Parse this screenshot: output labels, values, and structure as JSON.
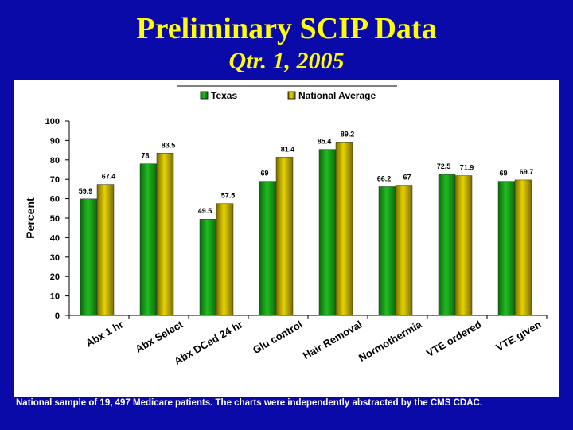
{
  "header": {
    "title": "Preliminary SCIP Data",
    "subtitle": "Qtr. 1, 2005"
  },
  "footnote": "National sample of 19, 497 Medicare patients. The charts were independently abstracted by the CMS CDAC.",
  "colors": {
    "background": "#0a0aa8",
    "title": "#ffff00",
    "texas": "#22aa22",
    "national": "#c8b400"
  },
  "chart_data": {
    "type": "bar",
    "categories": [
      "Abx 1 hr",
      "Abx Select",
      "Abx DCed 24 hr",
      "Glu control",
      "Hair Removal",
      "Normothermia",
      "VTE ordered",
      "VTE given"
    ],
    "series": [
      {
        "name": "Texas",
        "values": [
          59.9,
          78,
          49.5,
          69,
          85.4,
          66.2,
          72.5,
          69
        ]
      },
      {
        "name": "National Average",
        "values": [
          67.4,
          83.5,
          57.5,
          81.4,
          89.2,
          67,
          71.9,
          69.7
        ]
      }
    ],
    "value_labels": {
      "Texas": [
        "59.9",
        "78",
        "49.5",
        "69",
        "85.4",
        "66.2",
        "72.5",
        "69"
      ],
      "National Average": [
        "67.4",
        "83.5",
        "57.5",
        "81.4",
        "89.2",
        "67",
        "71.9",
        "69.7"
      ]
    },
    "ylabel": "Percent",
    "ylim": [
      0,
      100
    ],
    "yticks": [
      0,
      10,
      20,
      30,
      40,
      50,
      60,
      70,
      80,
      90,
      100
    ],
    "grid": false,
    "legend_position": "top"
  }
}
